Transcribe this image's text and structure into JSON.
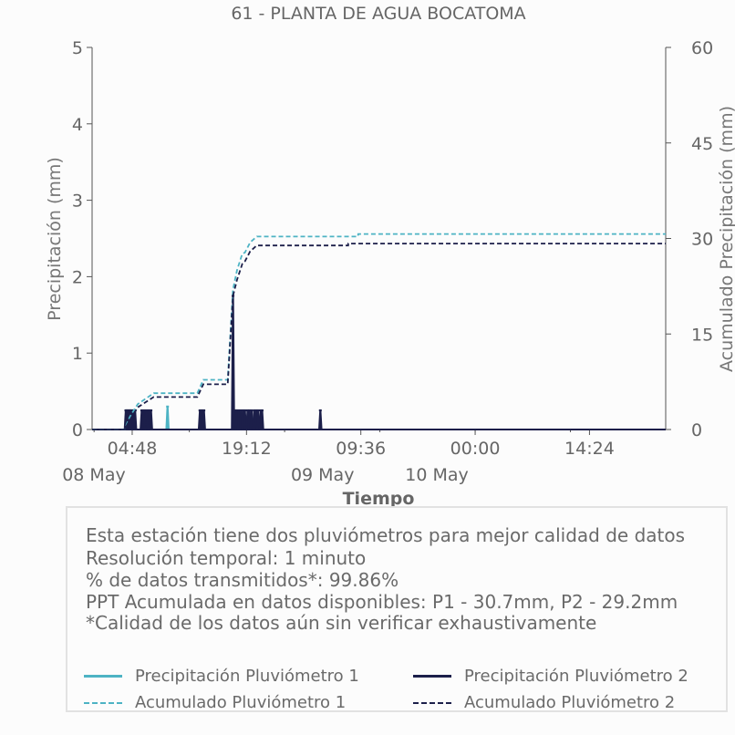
{
  "chart_data": {
    "type": "line",
    "title": "61 - PLANTA DE AGUA BOCATOMA",
    "xlabel": "Tiempo",
    "ylabel": "Precipitación (mm)",
    "y2label": "Acumulado Precipitación (mm)",
    "xlim": [
      "2024-05-07T23:45",
      "2024-05-11T00:00"
    ],
    "ylim": [
      0,
      5
    ],
    "y2lim": [
      0,
      60
    ],
    "yticks": [
      0,
      1,
      2,
      3,
      4,
      5
    ],
    "y2ticks": [
      0,
      15,
      30,
      45,
      60
    ],
    "xticks": [
      {
        "time": "2024-05-08T04:48",
        "label": "04:48",
        "sublabel": "08 May"
      },
      {
        "time": "2024-05-08T19:12",
        "label": "19:12",
        "sublabel": ""
      },
      {
        "time": "2024-05-09T09:36",
        "label": "09:36",
        "sublabel": "09 May"
      },
      {
        "time": "2024-05-10T00:00",
        "label": "00:00",
        "sublabel": "10 May"
      },
      {
        "time": "2024-05-10T14:24",
        "label": "14:24",
        "sublabel": ""
      }
    ],
    "grid": false,
    "series": [
      {
        "name": "Precipitación Pluviómetro 1",
        "axis": "left",
        "style": "solid",
        "color": "#4db3c4",
        "events": [
          [
            "2024-05-08T09:15",
            0.3
          ]
        ]
      },
      {
        "name": "Precipitación Pluviómetro 2",
        "axis": "left",
        "style": "solid",
        "color": "#1c1f4a",
        "events": [
          [
            "2024-05-08T04:00",
            0.25
          ],
          [
            "2024-05-08T04:05",
            0.25
          ],
          [
            "2024-05-08T04:10",
            0.25
          ],
          [
            "2024-05-08T04:15",
            0.25
          ],
          [
            "2024-05-08T04:25",
            0.25
          ],
          [
            "2024-05-08T04:30",
            0.25
          ],
          [
            "2024-05-08T04:35",
            0.25
          ],
          [
            "2024-05-08T04:40",
            0.25
          ],
          [
            "2024-05-08T04:45",
            0.25
          ],
          [
            "2024-05-08T05:00",
            0.25
          ],
          [
            "2024-05-08T05:05",
            0.25
          ],
          [
            "2024-05-08T05:10",
            0.25
          ],
          [
            "2024-05-08T06:00",
            0.25
          ],
          [
            "2024-05-08T06:10",
            0.25
          ],
          [
            "2024-05-08T06:20",
            0.25
          ],
          [
            "2024-05-08T06:30",
            0.25
          ],
          [
            "2024-05-08T06:40",
            0.25
          ],
          [
            "2024-05-08T06:50",
            0.25
          ],
          [
            "2024-05-08T07:00",
            0.25
          ],
          [
            "2024-05-08T07:10",
            0.25
          ],
          [
            "2024-05-08T13:20",
            0.25
          ],
          [
            "2024-05-08T13:30",
            0.25
          ],
          [
            "2024-05-08T13:40",
            0.25
          ],
          [
            "2024-05-08T13:50",
            0.25
          ],
          [
            "2024-05-08T17:30",
            1.75
          ],
          [
            "2024-05-08T17:40",
            0.25
          ],
          [
            "2024-05-08T17:50",
            0.25
          ],
          [
            "2024-05-08T18:00",
            0.25
          ],
          [
            "2024-05-08T18:15",
            0.25
          ],
          [
            "2024-05-08T18:30",
            0.25
          ],
          [
            "2024-05-08T18:45",
            0.25
          ],
          [
            "2024-05-08T19:00",
            0.25
          ],
          [
            "2024-05-08T19:20",
            0.25
          ],
          [
            "2024-05-08T19:35",
            0.25
          ],
          [
            "2024-05-08T19:50",
            0.25
          ],
          [
            "2024-05-08T20:10",
            0.25
          ],
          [
            "2024-05-08T20:25",
            0.25
          ],
          [
            "2024-05-08T20:40",
            0.25
          ],
          [
            "2024-05-08T21:00",
            0.25
          ],
          [
            "2024-05-08T21:10",
            0.25
          ],
          [
            "2024-05-09T04:30",
            0.25
          ]
        ]
      },
      {
        "name": "Acumulado Pluviómetro 1",
        "axis": "right",
        "style": "dashed",
        "color": "#4db3c4",
        "points": [
          [
            "2024-05-07T23:45",
            0
          ],
          [
            "2024-05-08T03:50",
            0
          ],
          [
            "2024-05-08T04:30",
            2
          ],
          [
            "2024-05-08T05:30",
            4
          ],
          [
            "2024-05-08T07:30",
            5.7
          ],
          [
            "2024-05-08T13:00",
            5.7
          ],
          [
            "2024-05-08T13:45",
            7.8
          ],
          [
            "2024-05-08T16:50",
            7.8
          ],
          [
            "2024-05-08T17:30",
            22
          ],
          [
            "2024-05-08T18:00",
            25
          ],
          [
            "2024-05-08T18:40",
            27.6
          ],
          [
            "2024-05-08T19:00",
            27.8
          ],
          [
            "2024-05-08T19:40",
            29.4
          ],
          [
            "2024-05-08T20:30",
            30.3
          ],
          [
            "2024-05-09T09:15",
            30.3
          ],
          [
            "2024-05-09T09:16",
            30.7
          ],
          [
            "2024-05-11T00:00",
            30.7
          ]
        ]
      },
      {
        "name": "Acumulado Pluviómetro 2",
        "axis": "right",
        "style": "dashed",
        "color": "#1c1f4a",
        "points": [
          [
            "2024-05-07T23:45",
            0
          ],
          [
            "2024-05-08T03:50",
            0
          ],
          [
            "2024-05-08T04:30",
            1.5
          ],
          [
            "2024-05-08T05:30",
            3.5
          ],
          [
            "2024-05-08T07:30",
            5.1
          ],
          [
            "2024-05-08T13:00",
            5.1
          ],
          [
            "2024-05-08T13:45",
            7.1
          ],
          [
            "2024-05-08T16:50",
            7.1
          ],
          [
            "2024-05-08T17:30",
            21
          ],
          [
            "2024-05-08T18:00",
            23.5
          ],
          [
            "2024-05-08T18:40",
            26
          ],
          [
            "2024-05-08T19:00",
            26.4
          ],
          [
            "2024-05-08T19:40",
            28
          ],
          [
            "2024-05-08T20:30",
            28.9
          ],
          [
            "2024-05-09T08:00",
            28.9
          ],
          [
            "2024-05-09T08:01",
            29.2
          ],
          [
            "2024-05-11T00:00",
            29.2
          ]
        ]
      }
    ]
  },
  "info": {
    "lines": [
      "Esta estación tiene dos pluviómetros para mejor calidad de datos",
      "Resolución temporal: 1 minuto",
      "% de datos transmitidos*: 99.86%",
      "PPT Acumulada en datos disponibles: P1 - 30.7mm, P2 - 29.2mm",
      "*Calidad de los datos aún sin verificar exhaustivamente"
    ]
  },
  "legend": [
    {
      "label": "Precipitación Pluviómetro 1",
      "color": "#4db3c4",
      "style": "solid"
    },
    {
      "label": "Precipitación Pluviómetro 2",
      "color": "#1c1f4a",
      "style": "solid"
    },
    {
      "label": "Acumulado Pluviómetro 1",
      "color": "#4db3c4",
      "style": "dashed"
    },
    {
      "label": "Acumulado Pluviómetro 2",
      "color": "#1c1f4a",
      "style": "dashed"
    }
  ]
}
